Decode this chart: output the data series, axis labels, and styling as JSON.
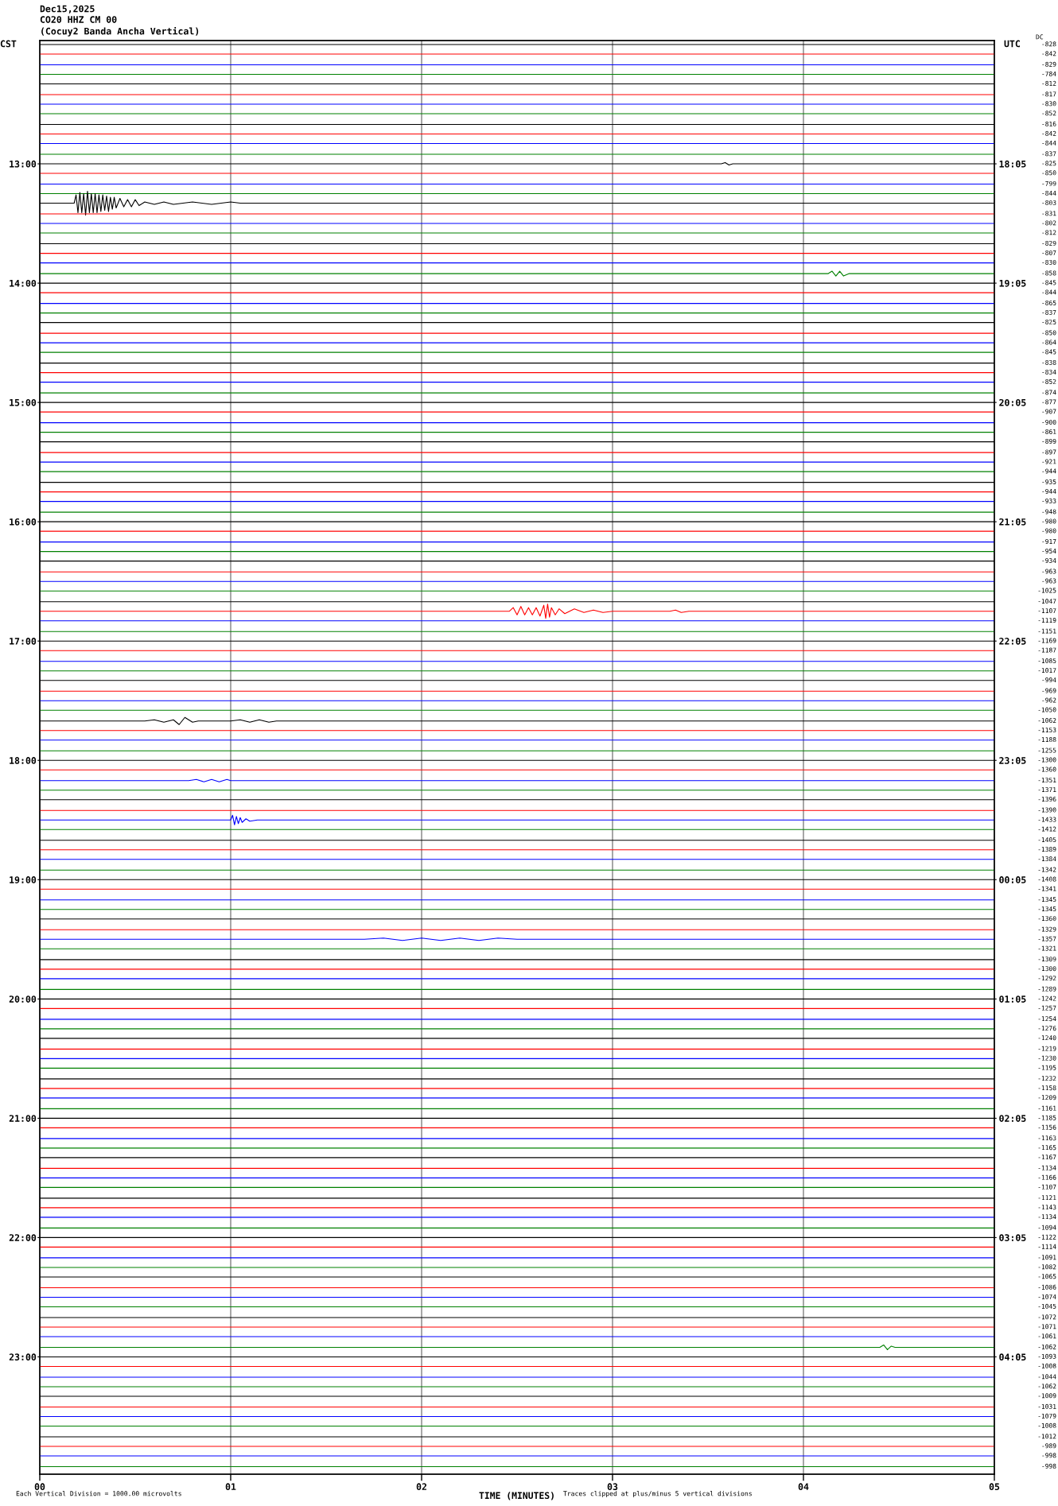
{
  "chart_data": {
    "type": "line",
    "title": "Dec15,2025",
    "subtitle": "CO20 HHZ CM 00\n(Cocuy2 Banda Ancha Vertical)",
    "xlabel": "TIME (MINUTES)",
    "ylabel": "CST",
    "y2label": "UTC",
    "annotations": [
      "Each Vertical Division = 1000.00 microvolts",
      "Traces clipped at plus/minus 5 vertical divisions",
      "DC",
      "-828",
      "-842",
      "-829",
      "-784",
      "-812",
      "-817",
      "-830",
      "-852",
      "-816",
      "-842",
      "-844",
      "-837",
      "-825",
      "-850",
      "-799",
      "-844",
      "-803",
      "-831",
      "-802",
      "-812",
      "-829",
      "-807",
      "-830",
      "-858",
      "-845",
      "-844",
      "-865",
      "-837",
      "-825",
      "-850",
      "-864",
      "-845",
      "-838",
      "-834",
      "-852",
      "-874",
      "-877",
      "-907",
      "-900",
      "-861",
      "-899",
      "-897",
      "-921",
      "-944",
      "-935",
      "-944",
      "-933",
      "-948",
      "-980",
      "-980",
      "-917",
      "-954",
      "-934",
      "-963",
      "-963",
      "-1025",
      "-1047",
      "-1107",
      "-1119",
      "-1151",
      "-1169",
      "-1187",
      "-1085",
      "-1017",
      "-994",
      "-969",
      "-962",
      "-1050",
      "-1062",
      "-1153",
      "-1188",
      "-1255",
      "-1300",
      "-1360",
      "-1351",
      "-1371",
      "-1396",
      "-1390",
      "-1433",
      "-1412",
      "-1405",
      "-1389",
      "-1384",
      "-1342",
      "-1408",
      "-1341",
      "-1345",
      "-1345",
      "-1360",
      "-1329",
      "-1357",
      "-1321",
      "-1309",
      "-1300",
      "-1292",
      "-1289",
      "-1242",
      "-1257",
      "-1254",
      "-1276",
      "-1240",
      "-1219",
      "-1230",
      "-1195",
      "-1232",
      "-1158",
      "-1209",
      "-1161",
      "-1185",
      "-1156",
      "-1163",
      "-1165",
      "-1167",
      "-1134",
      "-1166",
      "-1107",
      "-1121",
      "-1143",
      "-1134",
      "-1094",
      "-1122",
      "-1114",
      "-1091",
      "-1082",
      "-1065",
      "-1086",
      "-1074",
      "-1045",
      "-1072",
      "-1071",
      "-1061",
      "-1062",
      "-1093",
      "-1008",
      "-1044",
      "-1062",
      "-1009",
      "-1031",
      "-1079",
      "-1008",
      "-1012",
      "-989",
      "-998",
      "-998"
    ],
    "x": [
      0,
      5
    ],
    "xlim": [
      0,
      5
    ],
    "xticks": [
      {
        "value": 0,
        "label": "00"
      },
      {
        "value": 1,
        "label": "01"
      },
      {
        "value": 2,
        "label": "02"
      },
      {
        "value": 3,
        "label": "03"
      },
      {
        "value": 4,
        "label": "04"
      },
      {
        "value": 5,
        "label": "05"
      }
    ],
    "ylim": [
      23.9833,
      11.9667
    ],
    "yticks": [
      {
        "value": 13,
        "label": "13:00"
      },
      {
        "value": 14,
        "label": "14:00"
      },
      {
        "value": 15,
        "label": "15:00"
      },
      {
        "value": 16,
        "label": "16:00"
      },
      {
        "value": 17,
        "label": "17:00"
      },
      {
        "value": 18,
        "label": "18:00"
      },
      {
        "value": 19,
        "label": "19:00"
      },
      {
        "value": 20,
        "label": "20:00"
      },
      {
        "value": 21,
        "label": "21:00"
      },
      {
        "value": 22,
        "label": "22:00"
      },
      {
        "value": 23,
        "label": "23:00"
      }
    ],
    "y2lim": [
      "2025-12-16T05:04",
      "2025-12-15T17:03"
    ],
    "y2ticks": [
      {
        "value": "2025-12-15T18:05",
        "label": "18:05"
      },
      {
        "value": "2025-12-15T19:05",
        "label": "19:05"
      },
      {
        "value": "2025-12-15T20:05",
        "label": "20:05"
      },
      {
        "value": "2025-12-15T21:05",
        "label": "21:05"
      },
      {
        "value": "2025-12-15T22:05",
        "label": "22:05"
      },
      {
        "value": "2025-12-15T23:05",
        "label": "23:05"
      },
      {
        "value": "2025-12-16T00:05",
        "label": "00:05"
      },
      {
        "value": "2025-12-16T01:05",
        "label": "01:05"
      },
      {
        "value": "2025-12-16T02:05",
        "label": "02:05"
      },
      {
        "value": "2025-12-16T03:05",
        "label": "03:05"
      },
      {
        "value": "2025-12-16T04:05",
        "label": "04:05"
      }
    ],
    "grid": "x",
    "series": [
      {
        "color": "#000000",
        "values": [
          12,
          12
        ]
      },
      {
        "color": "#ff0000",
        "values": [
          12.08,
          12.08
        ]
      },
      {
        "color": "#0000ff",
        "values": [
          12.17,
          12.17
        ]
      },
      {
        "color": "#008000",
        "values": [
          12.25,
          12.25
        ]
      },
      {
        "color": "#000000",
        "values": [
          12.33,
          12.33
        ]
      },
      {
        "color": "#ff0000",
        "values": [
          12.42,
          12.42
        ]
      },
      {
        "color": "#0000ff",
        "values": [
          12.5,
          12.5
        ]
      },
      {
        "color": "#008000",
        "values": [
          12.58,
          12.58
        ]
      },
      {
        "color": "#000000",
        "values": [
          12.67,
          12.67
        ]
      },
      {
        "color": "#ff0000",
        "values": [
          12.75,
          12.75
        ]
      },
      {
        "color": "#0000ff",
        "values": [
          12.83,
          12.83
        ]
      },
      {
        "color": "#008000",
        "values": [
          12.92,
          12.92
        ]
      },
      {
        "color": "#000000",
        "x": [
          0,
          3.57,
          3.59,
          3.61,
          3.63,
          5
        ],
        "values": [
          13,
          13,
          12.99,
          13.01,
          13,
          13
        ]
      },
      {
        "color": "#ff0000",
        "values": [
          13.08,
          13.08
        ]
      },
      {
        "color": "#0000ff",
        "values": [
          13.17,
          13.17
        ]
      },
      {
        "color": "#008000",
        "values": [
          13.25,
          13.25
        ]
      },
      {
        "color": "#000000",
        "x": [
          0,
          0.18,
          0.19,
          0.2,
          0.21,
          0.22,
          0.23,
          0.24,
          0.25,
          0.26,
          0.27,
          0.28,
          0.29,
          0.3,
          0.31,
          0.32,
          0.33,
          0.34,
          0.35,
          0.36,
          0.37,
          0.38,
          0.39,
          0.4,
          0.42,
          0.44,
          0.46,
          0.48,
          0.5,
          0.52,
          0.55,
          0.6,
          0.65,
          0.7,
          0.8,
          0.9,
          1.0,
          1.05,
          5
        ],
        "values": [
          13.33,
          13.33,
          13.26,
          13.41,
          13.24,
          13.41,
          13.25,
          13.43,
          13.23,
          13.41,
          13.25,
          13.41,
          13.25,
          13.41,
          13.26,
          13.4,
          13.26,
          13.39,
          13.27,
          13.4,
          13.28,
          13.38,
          13.28,
          13.37,
          13.29,
          13.36,
          13.3,
          13.36,
          13.3,
          13.35,
          13.32,
          13.34,
          13.32,
          13.34,
          13.32,
          13.34,
          13.32,
          13.33,
          13.33
        ]
      },
      {
        "color": "#ff0000",
        "values": [
          13.42,
          13.42
        ]
      },
      {
        "color": "#0000ff",
        "values": [
          13.5,
          13.5
        ]
      },
      {
        "color": "#008000",
        "values": [
          13.58,
          13.58
        ]
      },
      {
        "color": "#000000",
        "values": [
          13.67,
          13.67
        ]
      },
      {
        "color": "#ff0000",
        "values": [
          13.75,
          13.75
        ]
      },
      {
        "color": "#0000ff",
        "values": [
          13.83,
          13.83
        ]
      },
      {
        "color": "#008000",
        "x": [
          0,
          4.13,
          4.15,
          4.17,
          4.19,
          4.21,
          4.24,
          5
        ],
        "values": [
          13.92,
          13.92,
          13.9,
          13.94,
          13.9,
          13.94,
          13.92,
          13.92
        ]
      },
      {
        "color": "#000000",
        "values": [
          14,
          14
        ]
      },
      {
        "color": "#ff0000",
        "values": [
          14.08,
          14.08
        ]
      },
      {
        "color": "#0000ff",
        "values": [
          14.17,
          14.17
        ]
      },
      {
        "color": "#008000",
        "values": [
          14.25,
          14.25
        ]
      },
      {
        "color": "#000000",
        "values": [
          14.33,
          14.33
        ]
      },
      {
        "color": "#ff0000",
        "values": [
          14.42,
          14.42
        ]
      },
      {
        "color": "#0000ff",
        "values": [
          14.5,
          14.5
        ]
      },
      {
        "color": "#008000",
        "values": [
          14.58,
          14.58
        ]
      },
      {
        "color": "#000000",
        "values": [
          14.67,
          14.67
        ]
      },
      {
        "color": "#ff0000",
        "values": [
          14.75,
          14.75
        ]
      },
      {
        "color": "#0000ff",
        "values": [
          14.83,
          14.83
        ]
      },
      {
        "color": "#008000",
        "values": [
          14.92,
          14.92
        ]
      },
      {
        "color": "#000000",
        "values": [
          15,
          15
        ]
      },
      {
        "color": "#ff0000",
        "values": [
          15.08,
          15.08
        ]
      },
      {
        "color": "#0000ff",
        "values": [
          15.17,
          15.17
        ]
      },
      {
        "color": "#008000",
        "values": [
          15.25,
          15.25
        ]
      },
      {
        "color": "#000000",
        "values": [
          15.33,
          15.33
        ]
      },
      {
        "color": "#ff0000",
        "values": [
          15.42,
          15.42
        ]
      },
      {
        "color": "#0000ff",
        "values": [
          15.5,
          15.5
        ]
      },
      {
        "color": "#008000",
        "values": [
          15.58,
          15.58
        ]
      },
      {
        "color": "#000000",
        "values": [
          15.67,
          15.67
        ]
      },
      {
        "color": "#ff0000",
        "values": [
          15.75,
          15.75
        ]
      },
      {
        "color": "#0000ff",
        "values": [
          15.83,
          15.83
        ]
      },
      {
        "color": "#008000",
        "values": [
          15.92,
          15.92
        ]
      },
      {
        "color": "#000000",
        "values": [
          16,
          16
        ]
      },
      {
        "color": "#ff0000",
        "values": [
          16.08,
          16.08
        ]
      },
      {
        "color": "#0000ff",
        "values": [
          16.17,
          16.17
        ]
      },
      {
        "color": "#008000",
        "values": [
          16.25,
          16.25
        ]
      },
      {
        "color": "#000000",
        "values": [
          16.33,
          16.33
        ]
      },
      {
        "color": "#ff0000",
        "values": [
          16.42,
          16.42
        ]
      },
      {
        "color": "#0000ff",
        "values": [
          16.5,
          16.5
        ]
      },
      {
        "color": "#008000",
        "values": [
          16.58,
          16.58
        ]
      },
      {
        "color": "#000000",
        "values": [
          16.67,
          16.67
        ]
      },
      {
        "color": "#ff0000",
        "x": [
          0,
          2.46,
          2.48,
          2.5,
          2.52,
          2.54,
          2.56,
          2.58,
          2.6,
          2.62,
          2.64,
          2.65,
          2.66,
          2.67,
          2.68,
          2.7,
          2.72,
          2.75,
          2.8,
          2.85,
          2.9,
          2.95,
          3.0,
          3.3,
          3.33,
          3.36,
          3.4,
          5
        ],
        "values": [
          16.75,
          16.75,
          16.72,
          16.78,
          16.71,
          16.78,
          16.72,
          16.78,
          16.72,
          16.79,
          16.7,
          16.81,
          16.69,
          16.8,
          16.72,
          16.78,
          16.73,
          16.77,
          16.73,
          16.76,
          16.74,
          16.76,
          16.75,
          16.75,
          16.74,
          16.76,
          16.75,
          16.75
        ]
      },
      {
        "color": "#0000ff",
        "values": [
          16.83,
          16.83
        ]
      },
      {
        "color": "#008000",
        "values": [
          16.92,
          16.92
        ]
      },
      {
        "color": "#000000",
        "values": [
          17,
          17
        ]
      },
      {
        "color": "#ff0000",
        "values": [
          17.08,
          17.08
        ]
      },
      {
        "color": "#0000ff",
        "values": [
          17.17,
          17.17
        ]
      },
      {
        "color": "#008000",
        "values": [
          17.25,
          17.25
        ]
      },
      {
        "color": "#000000",
        "values": [
          17.33,
          17.33
        ]
      },
      {
        "color": "#ff0000",
        "values": [
          17.42,
          17.42
        ]
      },
      {
        "color": "#0000ff",
        "values": [
          17.5,
          17.5
        ]
      },
      {
        "color": "#008000",
        "values": [
          17.58,
          17.58
        ]
      },
      {
        "color": "#000000",
        "x": [
          0,
          0.55,
          0.6,
          0.65,
          0.7,
          0.73,
          0.76,
          0.8,
          0.83,
          1.0,
          1.05,
          1.1,
          1.15,
          1.2,
          1.24,
          5
        ],
        "values": [
          17.67,
          17.67,
          17.66,
          17.68,
          17.66,
          17.7,
          17.64,
          17.68,
          17.67,
          17.67,
          17.66,
          17.68,
          17.66,
          17.68,
          17.67,
          17.67
        ]
      },
      {
        "color": "#ff0000",
        "values": [
          17.75,
          17.75
        ]
      },
      {
        "color": "#0000ff",
        "values": [
          17.83,
          17.83
        ]
      },
      {
        "color": "#008000",
        "values": [
          17.92,
          17.92
        ]
      },
      {
        "color": "#000000",
        "values": [
          18,
          18
        ]
      },
      {
        "color": "#ff0000",
        "values": [
          18.08,
          18.08
        ]
      },
      {
        "color": "#0000ff",
        "x": [
          0,
          0.78,
          0.82,
          0.86,
          0.9,
          0.94,
          0.98,
          1.0,
          5
        ],
        "values": [
          18.17,
          18.17,
          18.16,
          18.18,
          18.16,
          18.18,
          18.16,
          18.17,
          18.17
        ]
      },
      {
        "color": "#008000",
        "values": [
          18.25,
          18.25
        ]
      },
      {
        "color": "#000000",
        "values": [
          18.33,
          18.33
        ]
      },
      {
        "color": "#ff0000",
        "values": [
          18.42,
          18.42
        ]
      },
      {
        "color": "#0000ff",
        "x": [
          0,
          1.0,
          1.01,
          1.02,
          1.03,
          1.04,
          1.05,
          1.06,
          1.08,
          1.1,
          1.14,
          5
        ],
        "values": [
          18.5,
          18.5,
          18.46,
          18.54,
          18.47,
          18.53,
          18.48,
          18.52,
          18.49,
          18.51,
          18.5,
          18.5
        ]
      },
      {
        "color": "#008000",
        "values": [
          18.58,
          18.58
        ]
      },
      {
        "color": "#000000",
        "values": [
          18.67,
          18.67
        ]
      },
      {
        "color": "#ff0000",
        "values": [
          18.75,
          18.75
        ]
      },
      {
        "color": "#0000ff",
        "values": [
          18.83,
          18.83
        ]
      },
      {
        "color": "#008000",
        "values": [
          18.92,
          18.92
        ]
      },
      {
        "color": "#000000",
        "values": [
          19,
          19
        ]
      },
      {
        "color": "#ff0000",
        "values": [
          19.08,
          19.08
        ]
      },
      {
        "color": "#0000ff",
        "values": [
          19.17,
          19.17
        ]
      },
      {
        "color": "#008000",
        "values": [
          19.25,
          19.25
        ]
      },
      {
        "color": "#000000",
        "values": [
          19.33,
          19.33
        ]
      },
      {
        "color": "#ff0000",
        "values": [
          19.42,
          19.42
        ]
      },
      {
        "color": "#0000ff",
        "x": [
          0,
          1.7,
          1.8,
          1.9,
          2.0,
          2.1,
          2.2,
          2.3,
          2.4,
          2.5,
          5
        ],
        "values": [
          19.5,
          19.5,
          19.49,
          19.51,
          19.49,
          19.51,
          19.49,
          19.51,
          19.49,
          19.5,
          19.5
        ]
      },
      {
        "color": "#008000",
        "values": [
          19.58,
          19.58
        ]
      },
      {
        "color": "#000000",
        "values": [
          19.67,
          19.67
        ]
      },
      {
        "color": "#ff0000",
        "values": [
          19.75,
          19.75
        ]
      },
      {
        "color": "#0000ff",
        "values": [
          19.83,
          19.83
        ]
      },
      {
        "color": "#008000",
        "values": [
          19.92,
          19.92
        ]
      },
      {
        "color": "#000000",
        "values": [
          20,
          20
        ]
      },
      {
        "color": "#ff0000",
        "values": [
          20.08,
          20.08
        ]
      },
      {
        "color": "#0000ff",
        "values": [
          20.17,
          20.17
        ]
      },
      {
        "color": "#008000",
        "values": [
          20.25,
          20.25
        ]
      },
      {
        "color": "#000000",
        "values": [
          20.33,
          20.33
        ]
      },
      {
        "color": "#ff0000",
        "values": [
          20.42,
          20.42
        ]
      },
      {
        "color": "#0000ff",
        "values": [
          20.5,
          20.5
        ]
      },
      {
        "color": "#008000",
        "values": [
          20.58,
          20.58
        ]
      },
      {
        "color": "#000000",
        "values": [
          20.67,
          20.67
        ]
      },
      {
        "color": "#ff0000",
        "values": [
          20.75,
          20.75
        ]
      },
      {
        "color": "#0000ff",
        "values": [
          20.83,
          20.83
        ]
      },
      {
        "color": "#008000",
        "values": [
          20.92,
          20.92
        ]
      },
      {
        "color": "#000000",
        "values": [
          21,
          21
        ]
      },
      {
        "color": "#ff0000",
        "values": [
          21.08,
          21.08
        ]
      },
      {
        "color": "#0000ff",
        "values": [
          21.17,
          21.17
        ]
      },
      {
        "color": "#008000",
        "values": [
          21.25,
          21.25
        ]
      },
      {
        "color": "#000000",
        "values": [
          21.33,
          21.33
        ]
      },
      {
        "color": "#ff0000",
        "values": [
          21.42,
          21.42
        ]
      },
      {
        "color": "#0000ff",
        "values": [
          21.5,
          21.5
        ]
      },
      {
        "color": "#008000",
        "values": [
          21.58,
          21.58
        ]
      },
      {
        "color": "#000000",
        "values": [
          21.67,
          21.67
        ]
      },
      {
        "color": "#ff0000",
        "values": [
          21.75,
          21.75
        ]
      },
      {
        "color": "#0000ff",
        "values": [
          21.83,
          21.83
        ]
      },
      {
        "color": "#008000",
        "values": [
          21.92,
          21.92
        ]
      },
      {
        "color": "#000000",
        "values": [
          22,
          22
        ]
      },
      {
        "color": "#ff0000",
        "values": [
          22.08,
          22.08
        ]
      },
      {
        "color": "#0000ff",
        "values": [
          22.17,
          22.17
        ]
      },
      {
        "color": "#008000",
        "values": [
          22.25,
          22.25
        ]
      },
      {
        "color": "#000000",
        "values": [
          22.33,
          22.33
        ]
      },
      {
        "color": "#ff0000",
        "values": [
          22.42,
          22.42
        ]
      },
      {
        "color": "#0000ff",
        "values": [
          22.5,
          22.5
        ]
      },
      {
        "color": "#008000",
        "values": [
          22.58,
          22.58
        ]
      },
      {
        "color": "#000000",
        "values": [
          22.67,
          22.67
        ]
      },
      {
        "color": "#ff0000",
        "values": [
          22.75,
          22.75
        ]
      },
      {
        "color": "#0000ff",
        "values": [
          22.83,
          22.83
        ]
      },
      {
        "color": "#008000",
        "x": [
          0,
          4.4,
          4.42,
          4.44,
          4.46,
          4.48,
          5
        ],
        "values": [
          22.92,
          22.92,
          22.9,
          22.94,
          22.91,
          22.92,
          22.92
        ]
      },
      {
        "color": "#000000",
        "values": [
          23,
          23
        ]
      },
      {
        "color": "#ff0000",
        "values": [
          23.08,
          23.08
        ]
      },
      {
        "color": "#0000ff",
        "values": [
          23.17,
          23.17
        ]
      },
      {
        "color": "#008000",
        "values": [
          23.25,
          23.25
        ]
      },
      {
        "color": "#000000",
        "values": [
          23.33,
          23.33
        ]
      },
      {
        "color": "#ff0000",
        "values": [
          23.42,
          23.42
        ]
      },
      {
        "color": "#0000ff",
        "values": [
          23.5,
          23.5
        ]
      },
      {
        "color": "#008000",
        "values": [
          23.58,
          23.58
        ]
      },
      {
        "color": "#000000",
        "values": [
          23.67,
          23.67
        ]
      },
      {
        "color": "#ff0000",
        "values": [
          23.75,
          23.75
        ]
      },
      {
        "color": "#0000ff",
        "values": [
          23.83,
          23.83
        ]
      },
      {
        "color": "#008000",
        "values": [
          23.92,
          23.92
        ]
      }
    ]
  }
}
